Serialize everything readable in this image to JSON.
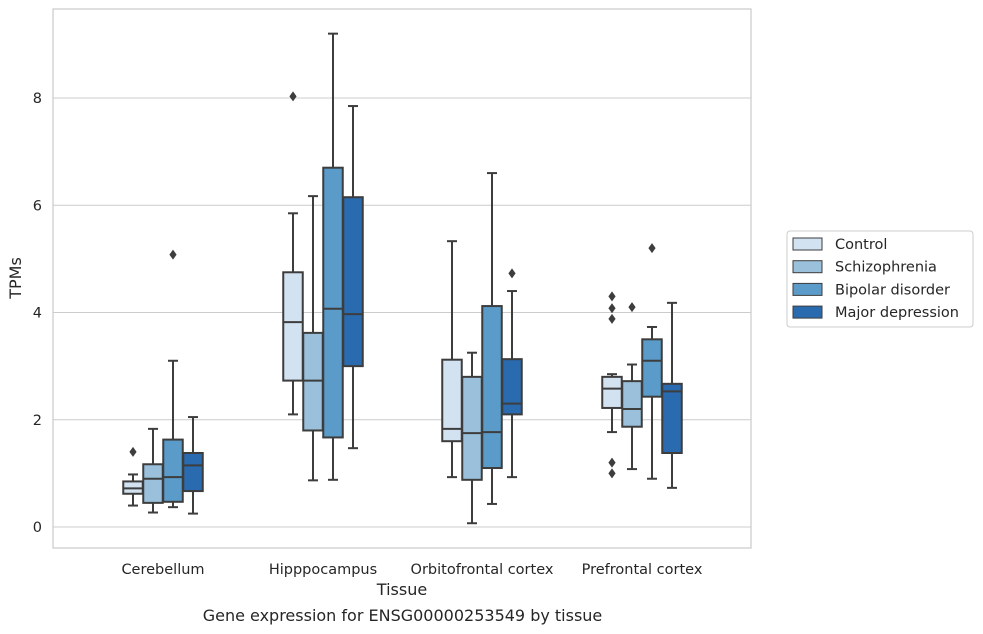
{
  "caption": "Gene expression for ENSG00000253549 by tissue",
  "chart_data": {
    "type": "box",
    "xlabel": "Tissue",
    "ylabel": "TPMs",
    "ylim": [
      -0.35,
      9.7
    ],
    "yticks": [
      0,
      2,
      4,
      6,
      8
    ],
    "grid": "horizontal",
    "legend_position": "right",
    "categories": [
      "Cerebellum",
      "Hipppocampus",
      "Orbitofrontal cortex",
      "Prefrontal cortex"
    ],
    "series": [
      {
        "name": "Control",
        "color": "#d3e2f1",
        "boxes": [
          {
            "whislo": 0.4,
            "q1": 0.62,
            "med": 0.72,
            "q3": 0.85,
            "whishi": 0.98,
            "fliers": [
              1.4
            ]
          },
          {
            "whislo": 2.1,
            "q1": 2.73,
            "med": 3.82,
            "q3": 4.75,
            "whishi": 5.85,
            "fliers": [
              8.03
            ]
          },
          {
            "whislo": 0.93,
            "q1": 1.6,
            "med": 1.83,
            "q3": 3.12,
            "whishi": 5.33,
            "fliers": []
          },
          {
            "whislo": 1.77,
            "q1": 2.22,
            "med": 2.58,
            "q3": 2.8,
            "whishi": 2.85,
            "fliers": [
              4.3,
              4.08,
              3.88,
              1.2,
              1.0
            ]
          }
        ]
      },
      {
        "name": "Schizophrenia",
        "color": "#9ac0db",
        "boxes": [
          {
            "whislo": 0.27,
            "q1": 0.45,
            "med": 0.9,
            "q3": 1.17,
            "whishi": 1.83,
            "fliers": []
          },
          {
            "whislo": 0.87,
            "q1": 1.8,
            "med": 2.73,
            "q3": 3.62,
            "whishi": 6.17,
            "fliers": []
          },
          {
            "whislo": 0.07,
            "q1": 0.88,
            "med": 1.75,
            "q3": 2.8,
            "whishi": 3.25,
            "fliers": []
          },
          {
            "whislo": 1.08,
            "q1": 1.87,
            "med": 2.2,
            "q3": 2.72,
            "whishi": 3.03,
            "fliers": [
              4.1
            ]
          }
        ]
      },
      {
        "name": "Bipolar disorder",
        "color": "#5a9bc9",
        "boxes": [
          {
            "whislo": 0.37,
            "q1": 0.47,
            "med": 0.93,
            "q3": 1.63,
            "whishi": 3.1,
            "fliers": [
              5.08
            ]
          },
          {
            "whislo": 0.88,
            "q1": 1.67,
            "med": 4.07,
            "q3": 6.7,
            "whishi": 9.2,
            "fliers": []
          },
          {
            "whislo": 0.43,
            "q1": 1.1,
            "med": 1.77,
            "q3": 4.12,
            "whishi": 6.6,
            "fliers": []
          },
          {
            "whislo": 0.9,
            "q1": 2.43,
            "med": 3.1,
            "q3": 3.5,
            "whishi": 3.73,
            "fliers": [
              5.2
            ]
          }
        ]
      },
      {
        "name": "Major depression",
        "color": "#2a6aae",
        "boxes": [
          {
            "whislo": 0.25,
            "q1": 0.67,
            "med": 1.15,
            "q3": 1.38,
            "whishi": 2.05,
            "fliers": []
          },
          {
            "whislo": 1.47,
            "q1": 3.0,
            "med": 3.97,
            "q3": 6.15,
            "whishi": 7.85,
            "fliers": []
          },
          {
            "whislo": 0.93,
            "q1": 2.1,
            "med": 2.3,
            "q3": 3.13,
            "whishi": 4.4,
            "fliers": [
              4.73
            ]
          },
          {
            "whislo": 0.73,
            "q1": 1.38,
            "med": 2.53,
            "q3": 2.67,
            "whishi": 4.18,
            "fliers": []
          }
        ]
      }
    ]
  }
}
